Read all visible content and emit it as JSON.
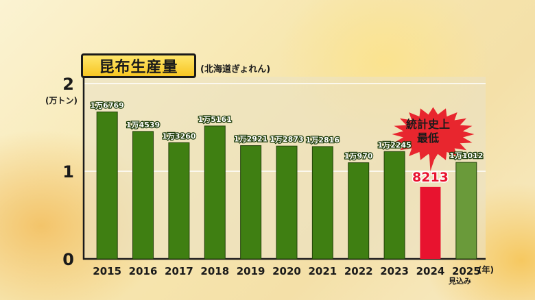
{
  "header": {
    "title": "昆布生産量",
    "subtitle": "(北海道ぎょれん)",
    "unit": "(万トン)",
    "year_suffix": "(年)",
    "forecast_note": "見込み"
  },
  "callout": {
    "line1": "統計史上",
    "line2": "最低",
    "fill_color": "#e8262e"
  },
  "colors": {
    "bar": "#3f7f12",
    "bar_highlight": "#e8132f",
    "bar_forecast": "#6a9a3a"
  },
  "chart_data": {
    "type": "bar",
    "title": "昆布生産量",
    "subtitle": "(北海道ぎょれん)",
    "ylabel": "(万トン)",
    "xlabel": "(年)",
    "ylim": [
      0,
      2
    ],
    "yticks": [
      "0",
      "1",
      "2"
    ],
    "grid": true,
    "categories": [
      "2015",
      "2016",
      "2017",
      "2018",
      "2019",
      "2020",
      "2021",
      "2022",
      "2023",
      "2024",
      "2025"
    ],
    "values": [
      16769,
      14539,
      13260,
      15161,
      12921,
      12873,
      12816,
      10970,
      12245,
      8213,
      11012
    ],
    "value_labels": [
      "1万6769",
      "1万4539",
      "1万3260",
      "1万5161",
      "1万2921",
      "1万2873",
      "1万2816",
      "1万970",
      "1万2245",
      "8213",
      "1万1012"
    ],
    "highlight_index": 9,
    "forecast_index": 10
  }
}
